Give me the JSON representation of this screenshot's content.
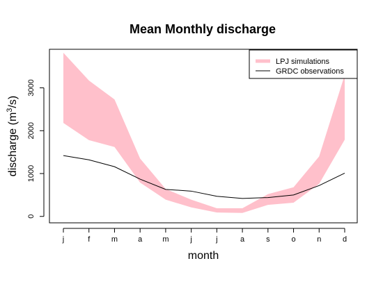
{
  "chart_data": {
    "type": "area",
    "title": "Mean Monthly discharge",
    "xlabel": "month",
    "ylabel": "discharge (m",
    "ylabel_superscript": "3",
    "ylabel_suffix": "/s)",
    "categories": [
      "j",
      "f",
      "m",
      "a",
      "m",
      "j",
      "j",
      "a",
      "s",
      "o",
      "n",
      "d"
    ],
    "ylim": [
      -150,
      3900
    ],
    "yticks": [
      0,
      1000,
      2000,
      3000
    ],
    "grid": false,
    "legend_position": "top-right",
    "series": [
      {
        "name": "LPJ simulations",
        "kind": "band",
        "color": "#ffc0cb",
        "lower": [
          2180,
          1780,
          1620,
          790,
          390,
          210,
          90,
          80,
          270,
          320,
          760,
          1790
        ],
        "upper": [
          3820,
          3170,
          2730,
          1350,
          640,
          390,
          190,
          190,
          520,
          680,
          1400,
          3300
        ]
      },
      {
        "name": "GRDC observations",
        "kind": "line",
        "color": "#000000",
        "values": [
          1420,
          1320,
          1160,
          870,
          630,
          590,
          470,
          420,
          440,
          500,
          720,
          1010
        ]
      }
    ]
  }
}
